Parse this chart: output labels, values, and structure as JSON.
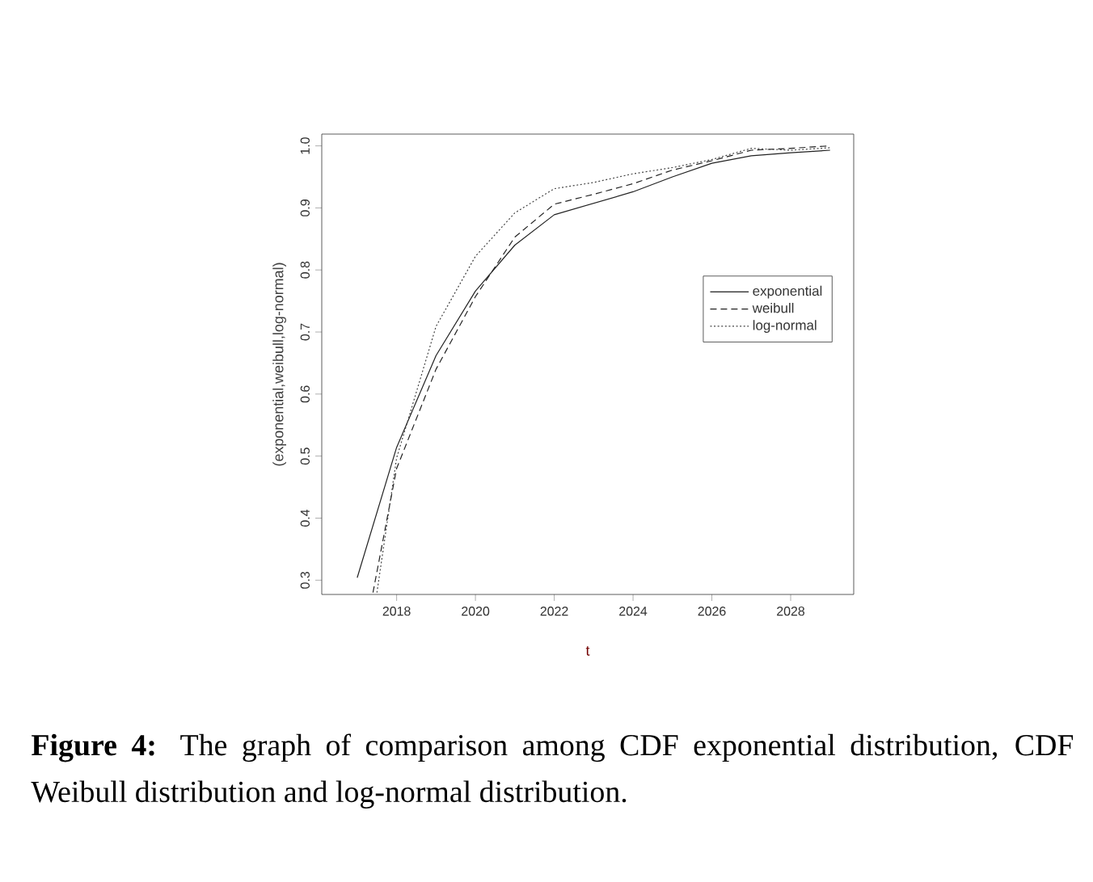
{
  "chart_data": {
    "type": "line",
    "xlabel": "t",
    "ylabel": "(exponential,weibull,log-normal)",
    "xlim": [
      2016.1,
      2029.6
    ],
    "ylim": [
      0.277,
      1.019
    ],
    "xticks": [
      2018,
      2020,
      2022,
      2024,
      2026,
      2028
    ],
    "yticks": [
      0.3,
      0.4,
      0.5,
      0.6,
      0.7,
      0.8,
      0.9,
      {
        "value": 1.0,
        "label": "1.0"
      }
    ],
    "grid": false,
    "legend": "right",
    "marker": "none",
    "series": [
      {
        "name": "exponential",
        "color": "#222222",
        "line_style": "solid",
        "x": [
          2017,
          2018,
          2019,
          2020,
          2021,
          2022,
          2024,
          2025,
          2026,
          2027,
          2028,
          2029
        ],
        "values": [
          0.304,
          0.514,
          0.662,
          0.766,
          0.84,
          0.889,
          0.926,
          0.95,
          0.972,
          0.984,
          0.989,
          0.993
        ]
      },
      {
        "name": "weibull",
        "color": "#222222",
        "line_style": "dashed",
        "x": [
          2017.4,
          2018,
          2019,
          2020,
          2021,
          2022,
          2023,
          2024,
          2025,
          2026,
          2027,
          2028,
          2029
        ],
        "values": [
          0.28,
          0.48,
          0.64,
          0.757,
          0.853,
          0.906,
          0.922,
          0.939,
          0.961,
          0.976,
          0.993,
          0.996,
          1.0
        ]
      },
      {
        "name": "log-normal",
        "color": "#444444",
        "line_style": "dotted",
        "x": [
          2017.5,
          2018,
          2019,
          2020,
          2021,
          2022,
          2023,
          2024,
          2025,
          2026,
          2027,
          2028,
          2029
        ],
        "values": [
          0.28,
          0.497,
          0.709,
          0.822,
          0.892,
          0.931,
          0.941,
          0.955,
          0.965,
          0.978,
          0.996,
          0.993,
          0.997
        ]
      }
    ],
    "annotations": [
      "**Figure 4:** The graph of comparison among CDF exponential distribution, CDF Weibull distribution and log-normal distribution."
    ]
  }
}
